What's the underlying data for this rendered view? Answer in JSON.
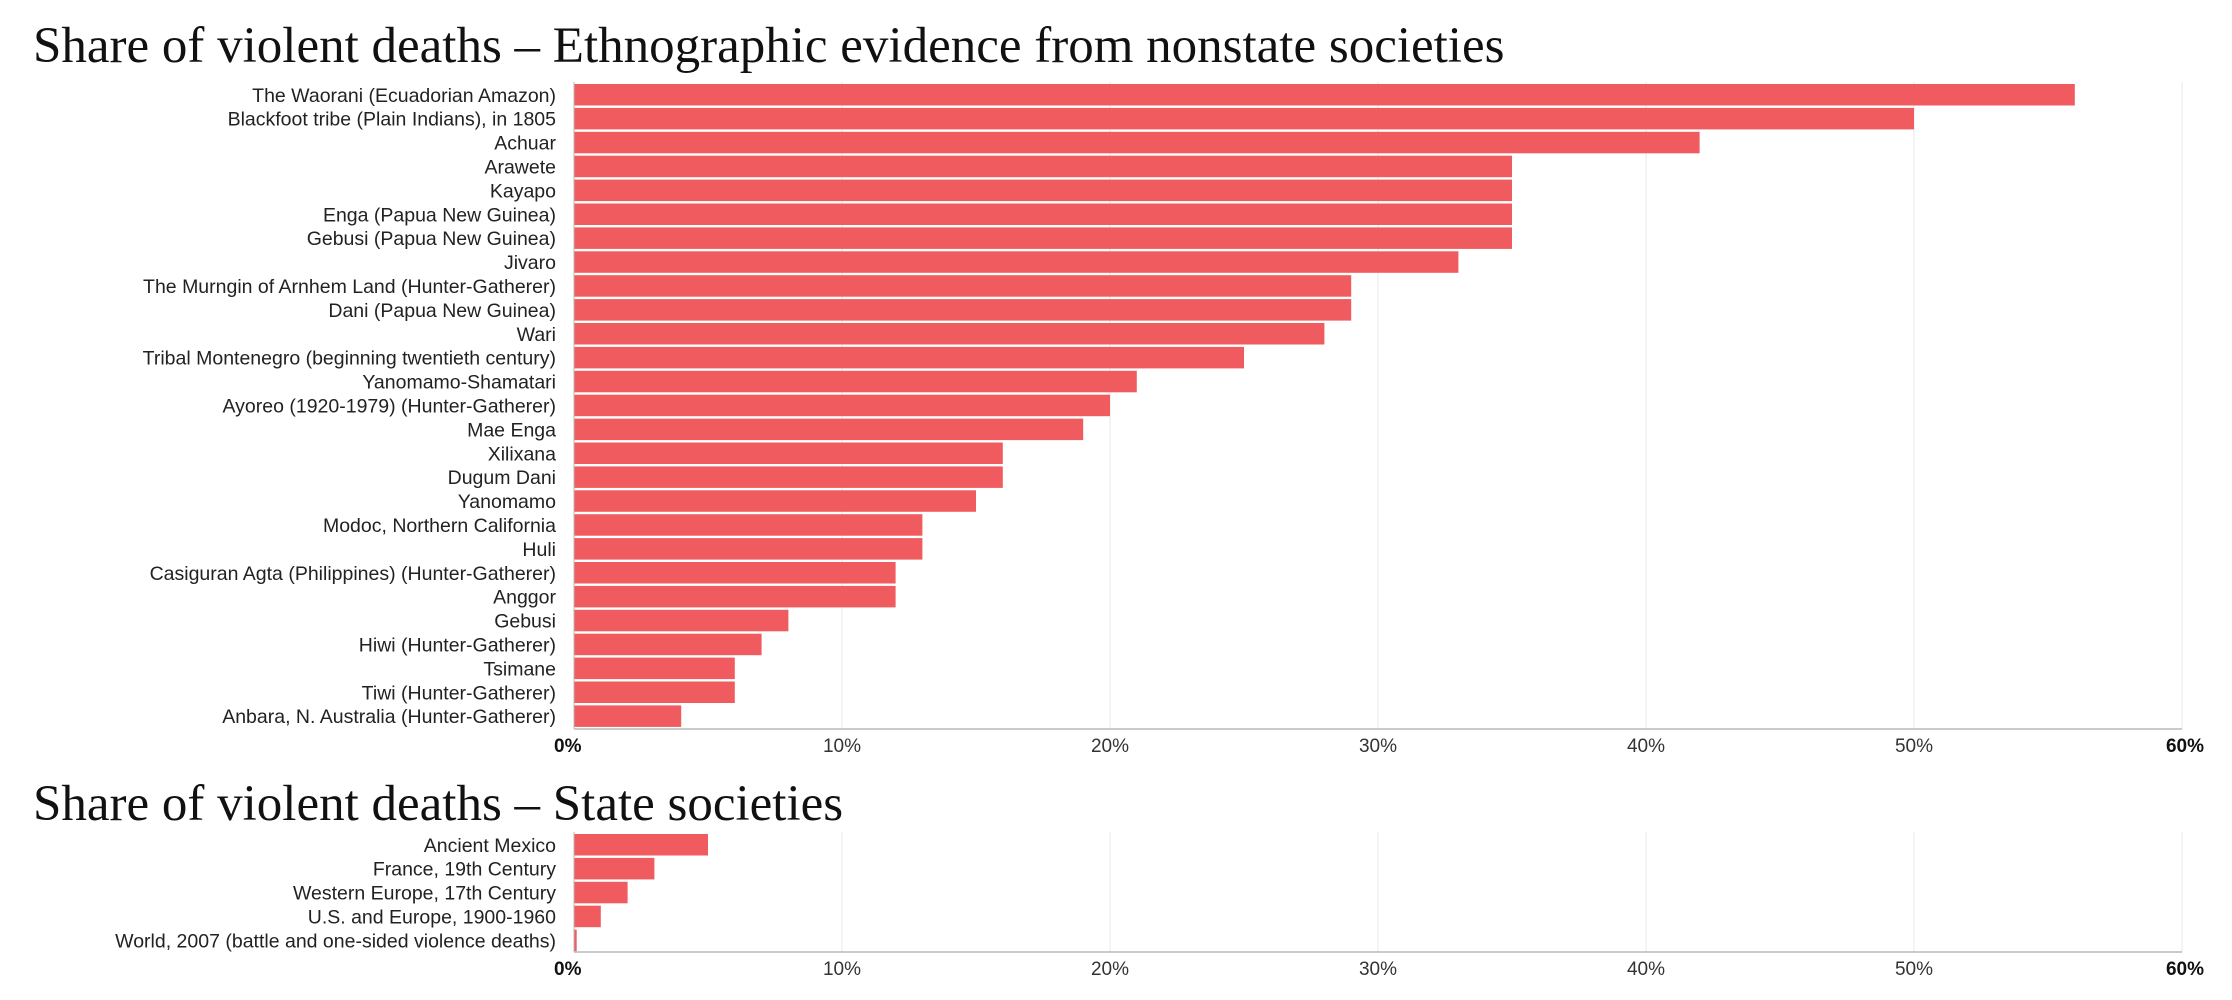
{
  "colors": {
    "bar": "#ef5b5e",
    "grid": "#f1f1f1",
    "axis": "#b8b8b8",
    "text": "#222222"
  },
  "chart_data": [
    {
      "type": "bar",
      "orientation": "horizontal",
      "title": "Share of violent deaths – Ethnographic evidence from nonstate societies",
      "xlabel": "",
      "ylabel": "",
      "xlim": [
        0,
        60
      ],
      "grid": true,
      "ticks": [
        "0%",
        "10%",
        "20%",
        "30%",
        "40%",
        "50%",
        "60%"
      ],
      "categories": [
        "The Waorani (Ecuadorian Amazon)",
        "Blackfoot tribe (Plain Indians), in 1805",
        "Achuar",
        "Arawete",
        "Kayapo",
        "Enga (Papua New Guinea)",
        "Gebusi (Papua New Guinea)",
        "Jivaro",
        "The Murngin of Arnhem Land (Hunter-Gatherer)",
        "Dani (Papua New Guinea)",
        "Wari",
        "Tribal Montenegro (beginning twentieth century)",
        "Yanomamo-Shamatari",
        "Ayoreo (1920-1979) (Hunter-Gatherer)",
        "Mae Enga",
        "Xilixana",
        "Dugum Dani",
        "Yanomamo",
        "Modoc, Northern California",
        "Huli",
        "Casiguran Agta (Philippines) (Hunter-Gatherer)",
        "Anggor",
        "Gebusi",
        "Hiwi (Hunter-Gatherer)",
        "Tsimane",
        "Tiwi (Hunter-Gatherer)",
        "Anbara, N. Australia (Hunter-Gatherer)"
      ],
      "values": [
        56,
        50,
        42,
        35,
        35,
        35,
        35,
        33,
        29,
        29,
        28,
        25,
        21,
        20,
        19,
        16,
        16,
        15,
        13,
        13,
        12,
        12,
        8,
        7,
        6,
        6,
        4
      ]
    },
    {
      "type": "bar",
      "orientation": "horizontal",
      "title": "Share of violent deaths – State societies",
      "xlabel": "",
      "ylabel": "",
      "xlim": [
        0,
        60
      ],
      "grid": true,
      "ticks": [
        "0%",
        "10%",
        "20%",
        "30%",
        "40%",
        "50%",
        "60%"
      ],
      "categories": [
        "Ancient Mexico",
        "France, 19th Century",
        "Western Europe, 17th Century",
        "U.S. and Europe, 1900-1960",
        "World, 2007 (battle and one-sided violence deaths)"
      ],
      "values": [
        5,
        3,
        2,
        1,
        0.1
      ]
    }
  ]
}
